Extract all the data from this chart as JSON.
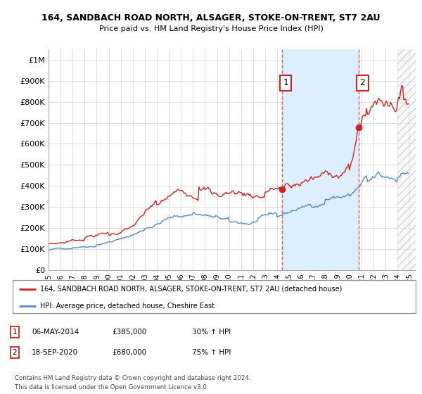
{
  "title": "164, SANDBACH ROAD NORTH, ALSAGER, STOKE-ON-TRENT, ST7 2AU",
  "subtitle": "Price paid vs. HM Land Registry's House Price Index (HPI)",
  "ytick_values": [
    0,
    100000,
    200000,
    300000,
    400000,
    500000,
    600000,
    700000,
    800000,
    900000,
    1000000
  ],
  "ylim": [
    0,
    1050000
  ],
  "hpi_color": "#5588cc",
  "price_color": "#cc2222",
  "legend_label_price": "164, SANDBACH ROAD NORTH, ALSAGER, STOKE-ON-TRENT, ST7 2AU (detached house)",
  "legend_label_hpi": "HPI: Average price, detached house, Cheshire East",
  "annotation1_date": "06-MAY-2014",
  "annotation1_price": "£385,000",
  "annotation1_hpi": "30% ↑ HPI",
  "annotation2_date": "18-SEP-2020",
  "annotation2_price": "£680,000",
  "annotation2_hpi": "75% ↑ HPI",
  "footer": "Contains HM Land Registry data © Crown copyright and database right 2024.\nThis data is licensed under the Open Government Licence v3.0.",
  "sale1_x": 2014.37,
  "sale1_y": 385000,
  "sale2_x": 2020.75,
  "sale2_y": 680000,
  "vline1_x": 2014.37,
  "vline2_x": 2020.75,
  "xlim": [
    1995,
    2025.5
  ],
  "hatch_start": 2024.0,
  "bg_color": "#ffffff",
  "grid_color": "#cccccc",
  "vline_color": "#dd4444",
  "span_color": "#ddeeff",
  "hatch_color": "#dddddd"
}
